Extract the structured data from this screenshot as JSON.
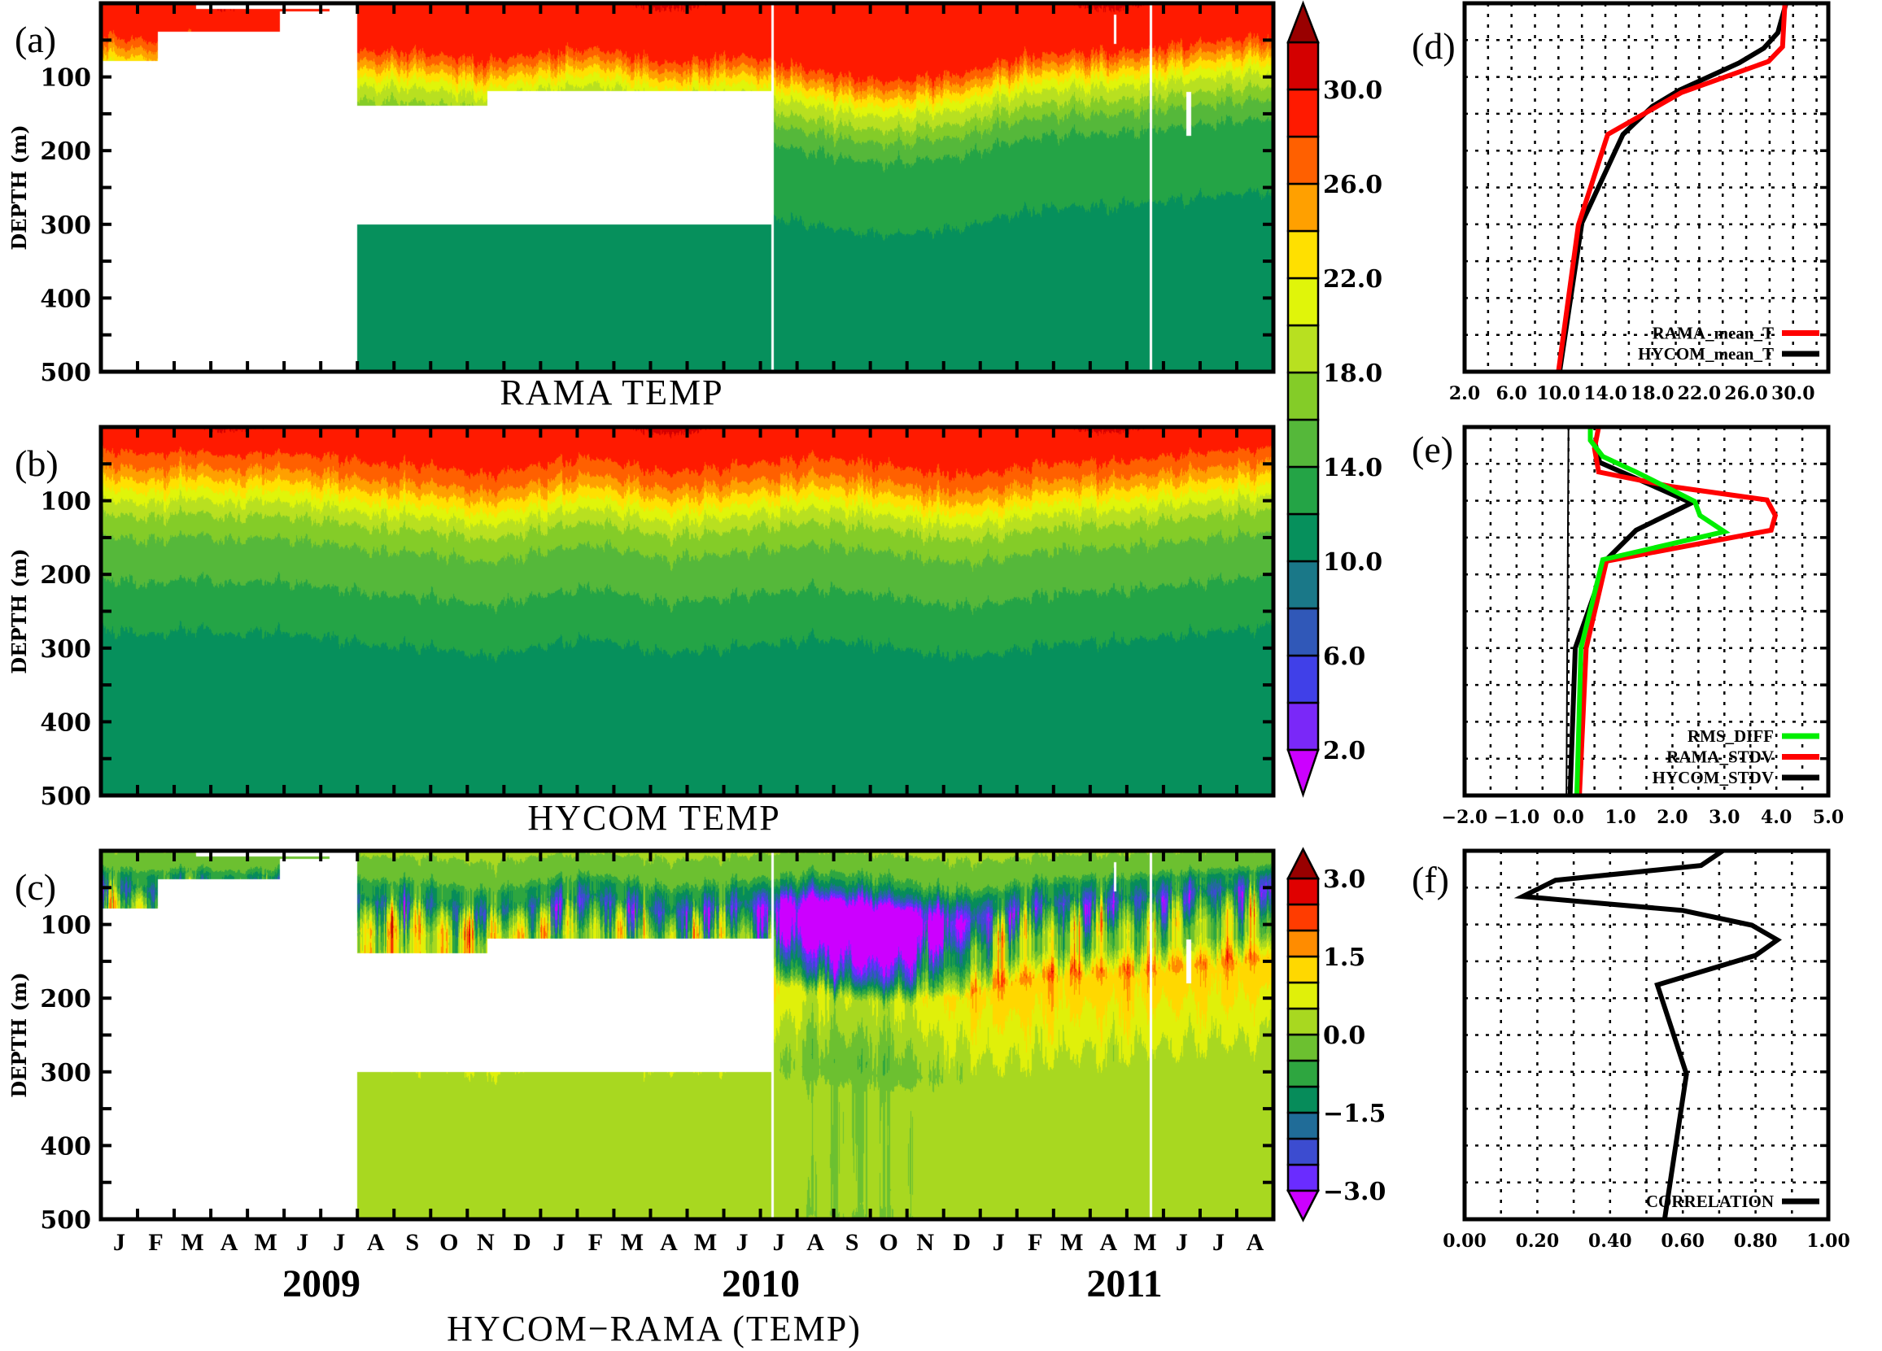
{
  "figure": {
    "panel_labels": {
      "a": "(a)",
      "b": "(b)",
      "c": "(c)",
      "d": "(d)",
      "e": "(e)",
      "f": "(f)"
    },
    "depth_axis_label": "DEPTH (m)",
    "depth_ticks": [
      "100",
      "200",
      "300",
      "400",
      "500"
    ],
    "months": [
      "J",
      "F",
      "M",
      "A",
      "M",
      "J",
      "J",
      "A",
      "S",
      "O",
      "N",
      "D",
      "J",
      "F",
      "M",
      "A",
      "M",
      "J",
      "J",
      "A",
      "S",
      "O",
      "N",
      "D",
      "J",
      "F",
      "M",
      "A",
      "M",
      "J",
      "J",
      "A"
    ],
    "years": [
      "2009",
      "2010",
      "2011"
    ],
    "titles": {
      "a": "RAMA TEMP",
      "b": "HYCOM TEMP",
      "c": "HYCOM−RAMA (TEMP)"
    }
  },
  "chart_data": [
    {
      "type": "heatmap",
      "panel": "a",
      "title": "RAMA TEMP",
      "ylabel": "DEPTH (m)",
      "x_range": [
        "2009-01-01",
        "2011-09-01"
      ],
      "ylim": [
        500,
        0
      ],
      "thermocline_depth_20C": [
        95,
        100,
        90,
        100,
        100,
        105,
        110,
        115,
        115,
        120,
        130,
        120,
        115,
        110,
        120,
        130,
        125,
        120,
        130,
        140,
        150,
        155,
        150,
        145,
        130,
        120,
        115,
        115,
        110,
        105,
        100,
        95
      ],
      "missing": [
        {
          "start": "2009-01-01",
          "end": "2009-02-18",
          "depth": [
            78,
            500
          ]
        },
        {
          "start": "2009-02-18",
          "end": "2009-05-28",
          "depth": [
            39,
            500
          ]
        },
        {
          "start": "2009-03-19",
          "end": "2009-07-08",
          "depth": [
            0,
            8
          ]
        },
        {
          "start": "2009-05-28",
          "end": "2009-07-08",
          "depth": [
            11,
            500
          ]
        },
        {
          "start": "2009-07-08",
          "end": "2009-08-01",
          "depth": [
            0,
            500
          ]
        },
        {
          "start": "2009-08-01",
          "end": "2009-11-18",
          "depth": [
            139,
            300
          ]
        },
        {
          "start": "2009-11-18",
          "end": "2010-07-10",
          "depth": [
            119,
            300
          ]
        },
        {
          "start": "2010-07-10",
          "end": "2010-07-12",
          "depth": [
            0,
            500
          ]
        },
        {
          "start": "2011-04-21",
          "end": "2011-04-23",
          "depth": [
            15,
            55
          ]
        },
        {
          "start": "2011-05-20",
          "end": "2011-05-22",
          "depth": [
            0,
            500
          ]
        },
        {
          "start": "2011-06-20",
          "end": "2011-06-24",
          "depth": [
            120,
            180
          ]
        }
      ],
      "colorbar": {
        "levels_start": 2,
        "levels_step": 2,
        "levels_end": 32,
        "tick_labels": [
          "30.0",
          "26.0",
          "22.0",
          "18.0",
          "14.0",
          "10.0",
          "6.0",
          "2.0"
        ],
        "tick_values": [
          30,
          26,
          22,
          18,
          14,
          10,
          6,
          2
        ],
        "under": "#cc00ff",
        "over": "#990000",
        "colors": [
          "#7a28f8",
          "#4040e8",
          "#3058b8",
          "#1a7888",
          "#06905c",
          "#24a446",
          "#55b83a",
          "#84cc28",
          "#b8e020",
          "#e0f50a",
          "#ffe000",
          "#ffa000",
          "#ff6000",
          "#ff1a00",
          "#d40000"
        ]
      }
    },
    {
      "type": "heatmap",
      "panel": "b",
      "title": "HYCOM TEMP",
      "ylabel": "DEPTH (m)",
      "x_range": [
        "2009-01-01",
        "2011-09-01"
      ],
      "ylim": [
        500,
        0
      ],
      "thermocline_depth_20C": [
        100,
        105,
        95,
        105,
        100,
        105,
        110,
        120,
        120,
        125,
        135,
        125,
        115,
        110,
        120,
        130,
        125,
        120,
        115,
        110,
        115,
        120,
        130,
        135,
        130,
        120,
        115,
        115,
        110,
        105,
        100,
        95
      ],
      "missing": []
    },
    {
      "type": "heatmap",
      "panel": "c",
      "title": "HYCOM−RAMA (TEMP)",
      "ylabel": "DEPTH (m)",
      "x_range": [
        "2009-01-01",
        "2011-09-01"
      ],
      "ylim": [
        500,
        0
      ],
      "colorbar": {
        "levels_start": -3,
        "levels_step": 0.5,
        "levels_end": 3,
        "tick_labels": [
          "3.0",
          "1.5",
          "0.0",
          "−1.5",
          "−3.0"
        ],
        "tick_values": [
          3,
          1.5,
          0,
          -1.5,
          -3
        ],
        "under": "#cc00ff",
        "over": "#990000",
        "colors": [
          "#6a2cff",
          "#3c4cd0",
          "#206c98",
          "#068c5a",
          "#2ea640",
          "#6cc030",
          "#a8d820",
          "#e0f00a",
          "#ffd800",
          "#ff8c00",
          "#ff3c00",
          "#e00000"
        ]
      }
    },
    {
      "type": "line",
      "panel": "d",
      "xlim": [
        2,
        33
      ],
      "ylim": [
        500,
        0
      ],
      "x_grid_step": 2,
      "y_grid_step": 50,
      "grid": true,
      "x_tick_values": [
        2,
        6,
        10,
        14,
        18,
        22,
        26,
        30
      ],
      "x_tick_labels": [
        "2.0",
        "6.0",
        "10.0",
        "14.0",
        "18.0",
        "22.0",
        "26.0",
        "30.0"
      ],
      "legend": "bottom-right",
      "series": [
        {
          "name": "RAMA_mean_T",
          "color": "#ff0000",
          "depth": [
            0,
            59,
            79,
            121,
            178,
            301,
            500
          ],
          "values": [
            29.3,
            29.1,
            27.9,
            20.5,
            14.2,
            11.7,
            10.0
          ]
        },
        {
          "name": "HYCOM_mean_T",
          "color": "#000000",
          "depth": [
            0,
            40,
            61,
            81,
            118,
            140,
            178,
            298,
            500
          ],
          "values": [
            29.4,
            28.7,
            27.5,
            25.4,
            20.3,
            18.0,
            15.5,
            12.0,
            10.1
          ]
        }
      ]
    },
    {
      "type": "line",
      "panel": "e",
      "xlim": [
        -2,
        5
      ],
      "ylim": [
        500,
        0
      ],
      "x_grid_step": 0.5,
      "y_grid_step": 50,
      "grid": true,
      "x_tick_values": [
        -2,
        -1,
        0,
        1,
        2,
        3,
        4,
        5
      ],
      "x_tick_labels": [
        "−2.0",
        "−1.0",
        "0.0",
        "1.0",
        "2.0",
        "3.0",
        "4.0",
        "5.0"
      ],
      "legend": "bottom-right",
      "series": [
        {
          "name": "RMS_DIFF",
          "color": "#00ee00",
          "depth": [
            0,
            18,
            40,
            62,
            101,
            120,
            142,
            180,
            300,
            500
          ],
          "values": [
            0.42,
            0.42,
            0.66,
            1.33,
            2.43,
            2.53,
            3.0,
            0.66,
            0.24,
            0.16
          ]
        },
        {
          "name": "RAMA_STDV",
          "color": "#ff0000",
          "depth": [
            0,
            29,
            61,
            81,
            99,
            120,
            140,
            182,
            300,
            500
          ],
          "values": [
            0.58,
            0.5,
            0.58,
            2.0,
            3.82,
            3.98,
            3.9,
            0.73,
            0.34,
            0.21
          ]
        },
        {
          "name": "HYCOM_STDV",
          "color": "#000000",
          "depth": [
            18,
            48,
            103,
            140,
            180,
            300,
            500
          ],
          "values": [
            0.5,
            0.6,
            2.37,
            1.3,
            0.73,
            0.13,
            0.03
          ]
        }
      ]
    },
    {
      "type": "line",
      "panel": "f",
      "xlim": [
        0,
        1
      ],
      "ylim": [
        500,
        0
      ],
      "x_grid_step": 0.1,
      "y_grid_step": 50,
      "grid": true,
      "x_tick_values": [
        0,
        0.2,
        0.4,
        0.6,
        0.8,
        1.0
      ],
      "x_tick_labels": [
        "0.00",
        "0.20",
        "0.40",
        "0.60",
        "0.80",
        "1.00"
      ],
      "legend": "bottom-right",
      "series": [
        {
          "name": "CORRELATION",
          "color": "#000000",
          "depth": [
            0,
            20,
            40,
            62,
            81,
            101,
            121,
            142,
            182,
            303,
            500
          ],
          "values": [
            0.71,
            0.65,
            0.25,
            0.16,
            0.6,
            0.79,
            0.86,
            0.8,
            0.53,
            0.61,
            0.55
          ]
        }
      ]
    }
  ]
}
